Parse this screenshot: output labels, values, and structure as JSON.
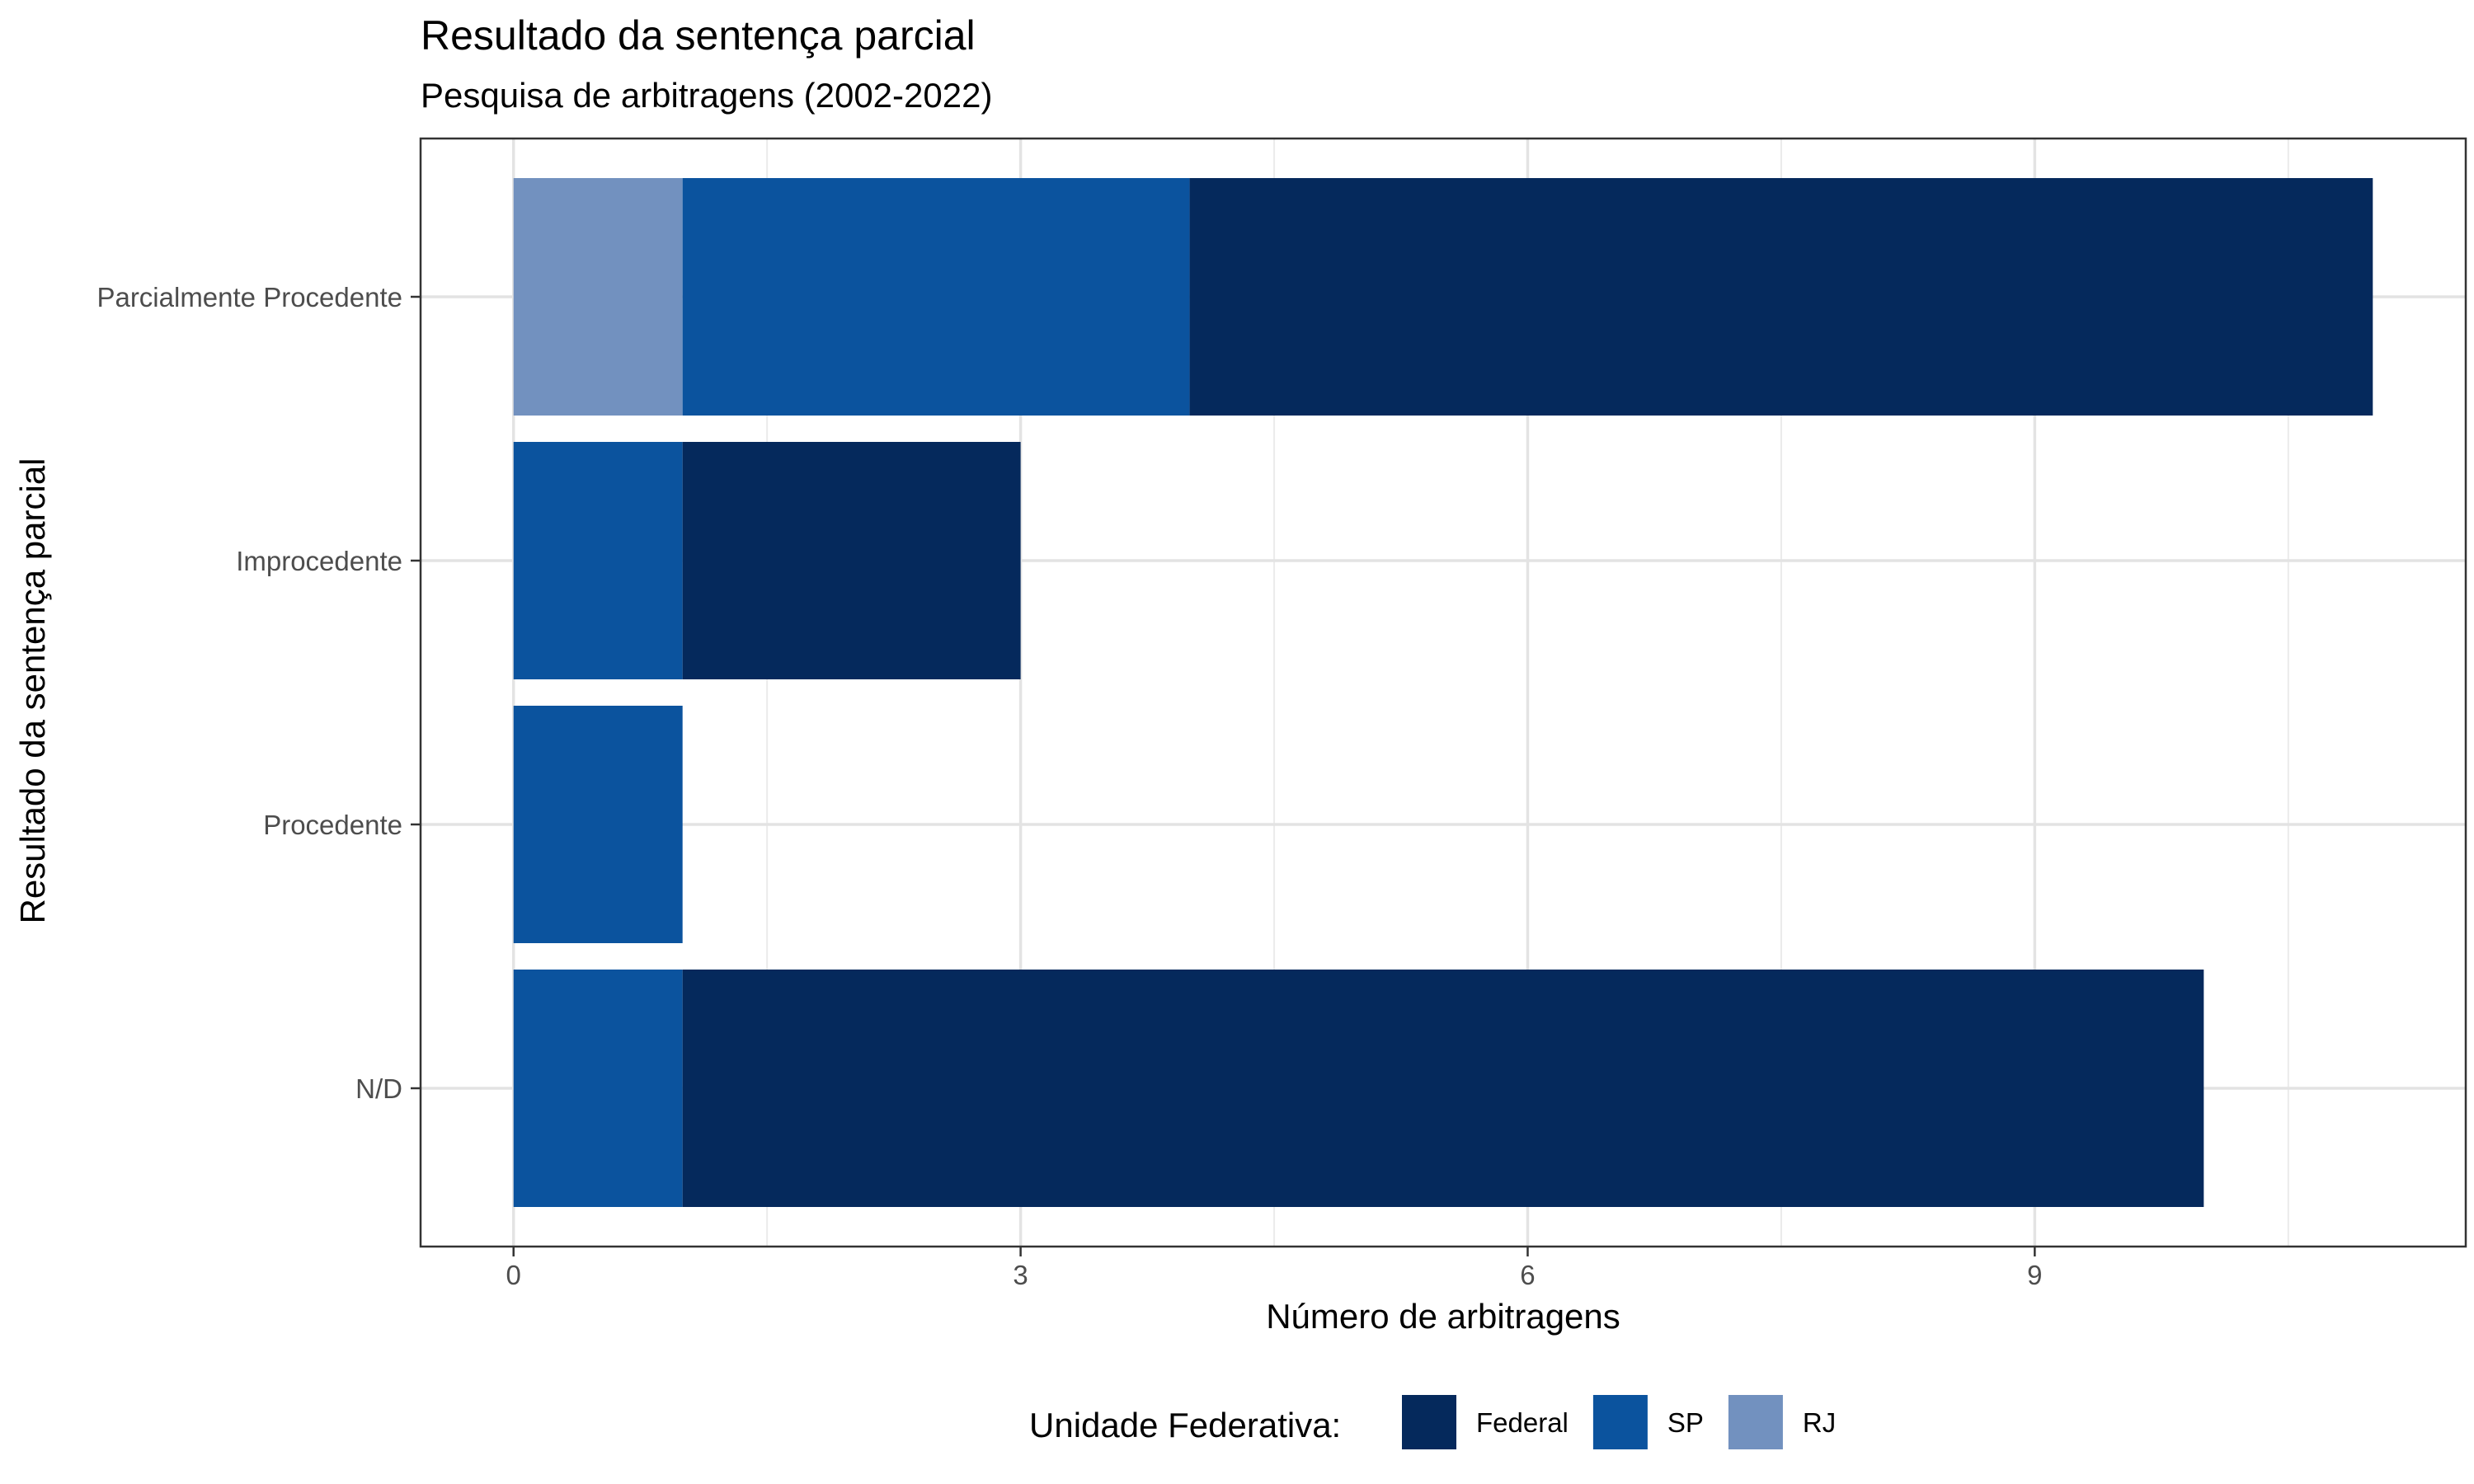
{
  "chart_data": {
    "type": "bar",
    "orientation": "horizontal",
    "stacked": true,
    "title": "Resultado da sentença parcial",
    "subtitle": "Pesquisa de arbitragens (2002-2022)",
    "xlabel": "Número de arbitragens",
    "ylabel": "Resultado da sentença parcial",
    "categories": [
      "N/D",
      "Procedente",
      "Improcedente",
      "Parcialmente Procedente"
    ],
    "series": [
      {
        "name": "Federal",
        "color": "#05295c",
        "values": [
          9,
          0,
          2,
          7
        ]
      },
      {
        "name": "SP",
        "color": "#0b539e",
        "values": [
          1,
          1,
          1,
          3
        ]
      },
      {
        "name": "RJ",
        "color": "#7291bf",
        "values": [
          0,
          0,
          0,
          1
        ]
      }
    ],
    "stack_order": [
      "RJ",
      "SP",
      "Federal"
    ],
    "xlim": [
      -0.55,
      11.55
    ],
    "xticks": [
      0,
      3,
      6,
      9
    ],
    "xtick_labels": [
      "0",
      "3",
      "6",
      "9"
    ],
    "grid": true,
    "legend": {
      "title": "Unidade Federativa:",
      "position": "bottom",
      "items": [
        "Federal",
        "SP",
        "RJ"
      ]
    }
  }
}
